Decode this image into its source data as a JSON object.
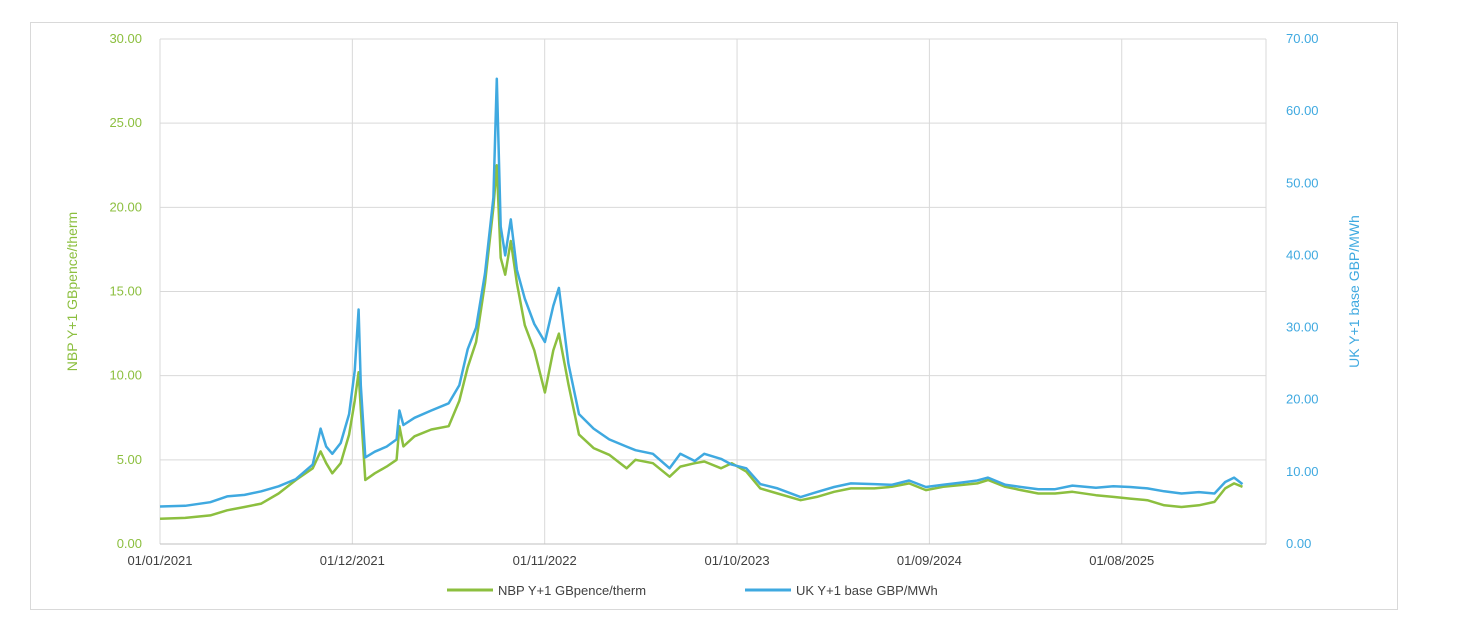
{
  "chart_data": {
    "type": "line",
    "title": "",
    "xlabel": "",
    "x_tick_labels": [
      "01/01/2021",
      "01/12/2021",
      "01/11/2022",
      "01/10/2023",
      "01/09/2024",
      "01/08/2025"
    ],
    "y_left": {
      "label": "NBP Y+1 GBpence/therm",
      "range": [
        0,
        30
      ],
      "tick_labels": [
        "0.00",
        "5.00",
        "10.00",
        "15.00",
        "20.00",
        "25.00",
        "30.00"
      ],
      "tick_values": [
        0,
        5,
        10,
        15,
        20,
        25,
        30
      ]
    },
    "y_right": {
      "label": "UK Y+1 base GBP/MWh",
      "range": [
        0,
        70
      ],
      "tick_labels": [
        "0.00",
        "10.00",
        "20.00",
        "30.00",
        "40.00",
        "50.00",
        "60.00",
        "70.00"
      ],
      "tick_values": [
        0,
        10,
        20,
        30,
        40,
        50,
        60,
        70
      ]
    },
    "grid": true,
    "legend_position": "bottom",
    "series": [
      {
        "name": "NBP Y+1 GBpence/therm",
        "axis": "left",
        "color": "#8cbf3f",
        "points": [
          [
            "2021-01-01",
            1.5
          ],
          [
            "2021-02-15",
            1.55
          ],
          [
            "2021-04-01",
            1.7
          ],
          [
            "2021-05-01",
            2.0
          ],
          [
            "2021-06-01",
            2.2
          ],
          [
            "2021-07-01",
            2.4
          ],
          [
            "2021-08-01",
            3.0
          ],
          [
            "2021-09-01",
            3.8
          ],
          [
            "2021-10-01",
            4.5
          ],
          [
            "2021-10-15",
            5.5
          ],
          [
            "2021-10-25",
            4.8
          ],
          [
            "2021-11-05",
            4.2
          ],
          [
            "2021-11-20",
            4.8
          ],
          [
            "2021-12-05",
            6.5
          ],
          [
            "2021-12-15",
            8.5
          ],
          [
            "2021-12-22",
            10.2
          ],
          [
            "2021-12-26",
            8.0
          ],
          [
            "2022-01-03",
            3.8
          ],
          [
            "2022-01-20",
            4.2
          ],
          [
            "2022-02-10",
            4.6
          ],
          [
            "2022-02-28",
            5.0
          ],
          [
            "2022-03-05",
            7.0
          ],
          [
            "2022-03-12",
            5.8
          ],
          [
            "2022-04-01",
            6.4
          ],
          [
            "2022-05-01",
            6.8
          ],
          [
            "2022-06-01",
            7.0
          ],
          [
            "2022-06-20",
            8.5
          ],
          [
            "2022-07-05",
            10.5
          ],
          [
            "2022-07-20",
            12.0
          ],
          [
            "2022-08-05",
            15.5
          ],
          [
            "2022-08-20",
            20.0
          ],
          [
            "2022-08-26",
            22.5
          ],
          [
            "2022-09-02",
            17.0
          ],
          [
            "2022-09-10",
            16.0
          ],
          [
            "2022-09-20",
            18.0
          ],
          [
            "2022-10-01",
            15.5
          ],
          [
            "2022-10-15",
            13.0
          ],
          [
            "2022-11-01",
            11.5
          ],
          [
            "2022-11-20",
            9.0
          ],
          [
            "2022-12-05",
            11.5
          ],
          [
            "2022-12-15",
            12.5
          ],
          [
            "2023-01-01",
            9.5
          ],
          [
            "2023-01-20",
            6.5
          ],
          [
            "2023-02-15",
            5.7
          ],
          [
            "2023-03-15",
            5.3
          ],
          [
            "2023-04-15",
            4.5
          ],
          [
            "2023-05-01",
            5.0
          ],
          [
            "2023-06-01",
            4.8
          ],
          [
            "2023-07-01",
            4.0
          ],
          [
            "2023-07-20",
            4.6
          ],
          [
            "2023-08-15",
            4.8
          ],
          [
            "2023-09-01",
            4.9
          ],
          [
            "2023-10-01",
            4.5
          ],
          [
            "2023-10-20",
            4.8
          ],
          [
            "2023-11-15",
            4.3
          ],
          [
            "2023-12-10",
            3.3
          ],
          [
            "2024-01-10",
            3.0
          ],
          [
            "2024-02-20",
            2.6
          ],
          [
            "2024-03-20",
            2.8
          ],
          [
            "2024-04-20",
            3.1
          ],
          [
            "2024-05-20",
            3.3
          ],
          [
            "2024-07-01",
            3.3
          ],
          [
            "2024-08-01",
            3.4
          ],
          [
            "2024-09-01",
            3.6
          ],
          [
            "2024-10-01",
            3.2
          ],
          [
            "2024-11-01",
            3.4
          ],
          [
            "2024-12-01",
            3.5
          ],
          [
            "2025-01-01",
            3.6
          ],
          [
            "2025-01-20",
            3.8
          ],
          [
            "2025-02-20",
            3.4
          ],
          [
            "2025-03-20",
            3.2
          ],
          [
            "2025-04-20",
            3.0
          ],
          [
            "2025-05-20",
            3.0
          ],
          [
            "2025-06-20",
            3.1
          ],
          [
            "2025-08-01",
            2.9
          ],
          [
            "2025-09-01",
            2.8
          ],
          [
            "2025-10-01",
            2.7
          ],
          [
            "2025-11-01",
            2.6
          ],
          [
            "2025-12-01",
            2.3
          ],
          [
            "2026-01-01",
            2.2
          ],
          [
            "2026-02-01",
            2.3
          ],
          [
            "2026-03-01",
            2.5
          ],
          [
            "2026-03-20",
            3.3
          ],
          [
            "2026-04-05",
            3.6
          ],
          [
            "2026-04-20",
            3.4
          ]
        ]
      },
      {
        "name": "UK Y+1 base GBP/MWh",
        "axis": "right",
        "color": "#3fa9e0",
        "points": [
          [
            "2021-01-01",
            5.2
          ],
          [
            "2021-02-15",
            5.3
          ],
          [
            "2021-04-01",
            5.8
          ],
          [
            "2021-05-01",
            6.6
          ],
          [
            "2021-06-01",
            6.8
          ],
          [
            "2021-07-01",
            7.3
          ],
          [
            "2021-08-01",
            8.0
          ],
          [
            "2021-09-01",
            9.0
          ],
          [
            "2021-10-01",
            11.0
          ],
          [
            "2021-10-15",
            16.0
          ],
          [
            "2021-10-25",
            13.5
          ],
          [
            "2021-11-05",
            12.5
          ],
          [
            "2021-11-20",
            14.0
          ],
          [
            "2021-12-05",
            18.0
          ],
          [
            "2021-12-15",
            24.0
          ],
          [
            "2021-12-22",
            32.5
          ],
          [
            "2021-12-26",
            22.0
          ],
          [
            "2022-01-03",
            12.0
          ],
          [
            "2022-01-20",
            12.8
          ],
          [
            "2022-02-10",
            13.5
          ],
          [
            "2022-02-28",
            14.5
          ],
          [
            "2022-03-05",
            18.5
          ],
          [
            "2022-03-12",
            16.5
          ],
          [
            "2022-04-01",
            17.5
          ],
          [
            "2022-05-01",
            18.5
          ],
          [
            "2022-06-01",
            19.5
          ],
          [
            "2022-06-20",
            22.0
          ],
          [
            "2022-07-05",
            27.0
          ],
          [
            "2022-07-20",
            30.0
          ],
          [
            "2022-08-05",
            37.5
          ],
          [
            "2022-08-20",
            48.0
          ],
          [
            "2022-08-26",
            64.5
          ],
          [
            "2022-09-02",
            44.0
          ],
          [
            "2022-09-10",
            40.0
          ],
          [
            "2022-09-20",
            45.0
          ],
          [
            "2022-10-01",
            38.0
          ],
          [
            "2022-10-15",
            34.0
          ],
          [
            "2022-11-01",
            30.5
          ],
          [
            "2022-11-20",
            28.0
          ],
          [
            "2022-12-05",
            33.0
          ],
          [
            "2022-12-15",
            35.5
          ],
          [
            "2023-01-01",
            25.0
          ],
          [
            "2023-01-20",
            18.0
          ],
          [
            "2023-02-15",
            16.0
          ],
          [
            "2023-03-15",
            14.5
          ],
          [
            "2023-04-15",
            13.5
          ],
          [
            "2023-05-01",
            13.0
          ],
          [
            "2023-06-01",
            12.5
          ],
          [
            "2023-07-01",
            10.5
          ],
          [
            "2023-07-20",
            12.5
          ],
          [
            "2023-08-15",
            11.5
          ],
          [
            "2023-09-01",
            12.5
          ],
          [
            "2023-10-01",
            11.8
          ],
          [
            "2023-10-20",
            11.0
          ],
          [
            "2023-11-15",
            10.5
          ],
          [
            "2023-12-10",
            8.3
          ],
          [
            "2024-01-10",
            7.7
          ],
          [
            "2024-02-20",
            6.5
          ],
          [
            "2024-03-20",
            7.2
          ],
          [
            "2024-04-20",
            7.9
          ],
          [
            "2024-05-20",
            8.4
          ],
          [
            "2024-07-01",
            8.3
          ],
          [
            "2024-08-01",
            8.2
          ],
          [
            "2024-09-01",
            8.8
          ],
          [
            "2024-10-01",
            7.9
          ],
          [
            "2024-11-01",
            8.2
          ],
          [
            "2024-12-01",
            8.5
          ],
          [
            "2025-01-01",
            8.8
          ],
          [
            "2025-01-20",
            9.2
          ],
          [
            "2025-02-20",
            8.2
          ],
          [
            "2025-03-20",
            7.9
          ],
          [
            "2025-04-20",
            7.6
          ],
          [
            "2025-05-20",
            7.6
          ],
          [
            "2025-06-20",
            8.1
          ],
          [
            "2025-08-01",
            7.8
          ],
          [
            "2025-09-01",
            8.0
          ],
          [
            "2025-10-01",
            7.9
          ],
          [
            "2025-11-01",
            7.7
          ],
          [
            "2025-12-01",
            7.3
          ],
          [
            "2026-01-01",
            7.0
          ],
          [
            "2026-02-01",
            7.2
          ],
          [
            "2026-03-01",
            7.0
          ],
          [
            "2026-03-20",
            8.6
          ],
          [
            "2026-04-05",
            9.2
          ],
          [
            "2026-04-20",
            8.3
          ]
        ]
      }
    ]
  }
}
